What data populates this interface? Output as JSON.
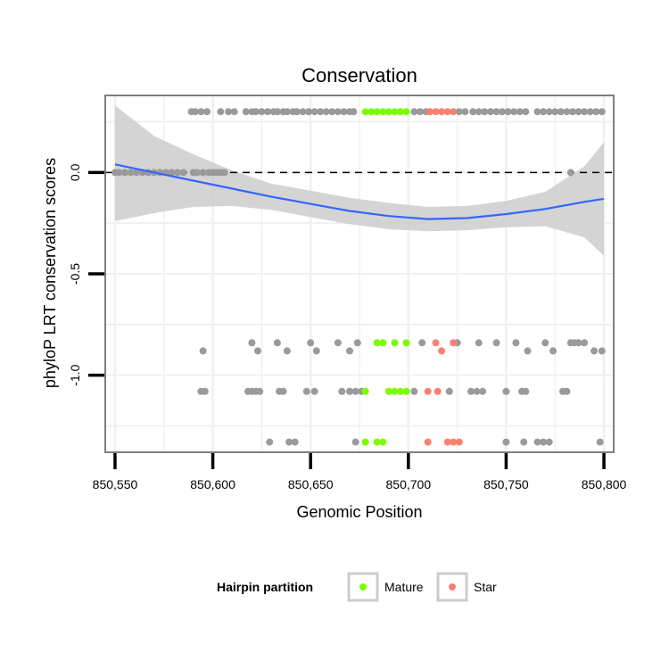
{
  "chart_data": {
    "type": "scatter",
    "title": "Conservation",
    "xlabel": "Genomic Position",
    "ylabel": "phyloP LRT conservation scores",
    "xlim": [
      850545,
      850805
    ],
    "ylim": [
      -1.38,
      0.38
    ],
    "x_ticks": [
      850550,
      850600,
      850650,
      850700,
      850750,
      850800
    ],
    "x_tick_labels": [
      "850,550",
      "850,600",
      "850,650",
      "850,700",
      "850,750",
      "850,800"
    ],
    "y_ticks": [
      0.0,
      -0.5,
      -1.0
    ],
    "y_tick_labels": [
      "0.0",
      "-0.5",
      "-1.0"
    ],
    "reference_line": {
      "y": 0.0,
      "style": "dashed"
    },
    "colors": {
      "other": "#9a9a9a",
      "Mature": "#7cfc00",
      "Star": "#fa8072",
      "smooth": "#3366ff",
      "ribbon": "#cccccc",
      "panel_border": "#7f7f7f",
      "grid": "#f0f0f0"
    },
    "smooth": {
      "x": [
        850550,
        850570,
        850590,
        850610,
        850630,
        850650,
        850670,
        850690,
        850710,
        850730,
        850750,
        850770,
        850790,
        850800
      ],
      "y": [
        0.04,
        0.0,
        -0.04,
        -0.08,
        -0.12,
        -0.155,
        -0.19,
        -0.215,
        -0.23,
        -0.225,
        -0.205,
        -0.18,
        -0.145,
        -0.13
      ],
      "lower": [
        -0.24,
        -0.2,
        -0.17,
        -0.165,
        -0.185,
        -0.22,
        -0.255,
        -0.28,
        -0.29,
        -0.285,
        -0.27,
        -0.265,
        -0.32,
        -0.41
      ],
      "upper": [
        0.33,
        0.18,
        0.09,
        0.01,
        -0.055,
        -0.09,
        -0.125,
        -0.15,
        -0.17,
        -0.165,
        -0.14,
        -0.095,
        0.03,
        0.15
      ]
    },
    "series": [
      {
        "name": "other",
        "points": [
          [
            850550,
            0.0
          ],
          [
            850552,
            0.0
          ],
          [
            850555,
            0.0
          ],
          [
            850558,
            0.0
          ],
          [
            850561,
            0.0
          ],
          [
            850564,
            0.0
          ],
          [
            850567,
            0.0
          ],
          [
            850570,
            0.0
          ],
          [
            850573,
            0.0
          ],
          [
            850576,
            0.0
          ],
          [
            850579,
            0.0
          ],
          [
            850582,
            0.0
          ],
          [
            850585,
            0.0
          ],
          [
            850590,
            0.0
          ],
          [
            850592,
            0.0
          ],
          [
            850595,
            0.0
          ],
          [
            850598,
            0.0
          ],
          [
            850600,
            0.0
          ],
          [
            850602,
            0.0
          ],
          [
            850604,
            0.0
          ],
          [
            850606,
            0.0
          ],
          [
            850783,
            0.0
          ],
          [
            850589,
            0.3
          ],
          [
            850591,
            0.3
          ],
          [
            850594,
            0.3
          ],
          [
            850597,
            0.3
          ],
          [
            850604,
            0.3
          ],
          [
            850608,
            0.3
          ],
          [
            850611,
            0.3
          ],
          [
            850617,
            0.3
          ],
          [
            850620,
            0.3
          ],
          [
            850622,
            0.3
          ],
          [
            850625,
            0.3
          ],
          [
            850628,
            0.3
          ],
          [
            850631,
            0.3
          ],
          [
            850633,
            0.3
          ],
          [
            850636,
            0.3
          ],
          [
            850638,
            0.3
          ],
          [
            850641,
            0.3
          ],
          [
            850643,
            0.3
          ],
          [
            850646,
            0.3
          ],
          [
            850649,
            0.3
          ],
          [
            850652,
            0.3
          ],
          [
            850655,
            0.3
          ],
          [
            850658,
            0.3
          ],
          [
            850661,
            0.3
          ],
          [
            850664,
            0.3
          ],
          [
            850667,
            0.3
          ],
          [
            850670,
            0.3
          ],
          [
            850672,
            0.3
          ],
          [
            850703,
            0.3
          ],
          [
            850706,
            0.3
          ],
          [
            850709,
            0.3
          ],
          [
            850726,
            0.3
          ],
          [
            850729,
            0.3
          ],
          [
            850733,
            0.3
          ],
          [
            850736,
            0.3
          ],
          [
            850739,
            0.3
          ],
          [
            850742,
            0.3
          ],
          [
            850745,
            0.3
          ],
          [
            850748,
            0.3
          ],
          [
            850751,
            0.3
          ],
          [
            850754,
            0.3
          ],
          [
            850757,
            0.3
          ],
          [
            850760,
            0.3
          ],
          [
            850766,
            0.3
          ],
          [
            850769,
            0.3
          ],
          [
            850772,
            0.3
          ],
          [
            850775,
            0.3
          ],
          [
            850778,
            0.3
          ],
          [
            850781,
            0.3
          ],
          [
            850784,
            0.3
          ],
          [
            850787,
            0.3
          ],
          [
            850790,
            0.3
          ],
          [
            850793,
            0.3
          ],
          [
            850796,
            0.3
          ],
          [
            850799,
            0.3
          ],
          [
            850595,
            -0.88
          ],
          [
            850620,
            -0.84
          ],
          [
            850623,
            -0.88
          ],
          [
            850633,
            -0.84
          ],
          [
            850638,
            -0.88
          ],
          [
            850650,
            -0.84
          ],
          [
            850653,
            -0.88
          ],
          [
            850664,
            -0.84
          ],
          [
            850670,
            -0.88
          ],
          [
            850674,
            -0.84
          ],
          [
            850707,
            -0.84
          ],
          [
            850725,
            -0.84
          ],
          [
            850736,
            -0.84
          ],
          [
            850745,
            -0.84
          ],
          [
            850755,
            -0.84
          ],
          [
            850761,
            -0.88
          ],
          [
            850770,
            -0.84
          ],
          [
            850774,
            -0.88
          ],
          [
            850783,
            -0.84
          ],
          [
            850785,
            -0.84
          ],
          [
            850787,
            -0.84
          ],
          [
            850790,
            -0.84
          ],
          [
            850795,
            -0.88
          ],
          [
            850799,
            -0.88
          ],
          [
            850594,
            -1.08
          ],
          [
            850596,
            -1.08
          ],
          [
            850618,
            -1.08
          ],
          [
            850620,
            -1.08
          ],
          [
            850622,
            -1.08
          ],
          [
            850624,
            -1.08
          ],
          [
            850634,
            -1.08
          ],
          [
            850636,
            -1.08
          ],
          [
            850648,
            -1.08
          ],
          [
            850652,
            -1.08
          ],
          [
            850666,
            -1.08
          ],
          [
            850670,
            -1.08
          ],
          [
            850673,
            -1.08
          ],
          [
            850676,
            -1.08
          ],
          [
            850703,
            -1.08
          ],
          [
            850721,
            -1.08
          ],
          [
            850732,
            -1.08
          ],
          [
            850735,
            -1.08
          ],
          [
            850738,
            -1.08
          ],
          [
            850750,
            -1.08
          ],
          [
            850758,
            -1.08
          ],
          [
            850760,
            -1.08
          ],
          [
            850779,
            -1.08
          ],
          [
            850781,
            -1.08
          ],
          [
            850629,
            -1.33
          ],
          [
            850639,
            -1.33
          ],
          [
            850642,
            -1.33
          ],
          [
            850673,
            -1.33
          ],
          [
            850750,
            -1.33
          ],
          [
            850759,
            -1.33
          ],
          [
            850766,
            -1.33
          ],
          [
            850769,
            -1.33
          ],
          [
            850772,
            -1.33
          ],
          [
            850798,
            -1.33
          ]
        ]
      },
      {
        "name": "Mature",
        "points": [
          [
            850678,
            0.3
          ],
          [
            850681,
            0.3
          ],
          [
            850684,
            0.3
          ],
          [
            850687,
            0.3
          ],
          [
            850690,
            0.3
          ],
          [
            850693,
            0.3
          ],
          [
            850696,
            0.3
          ],
          [
            850699,
            0.3
          ],
          [
            850684,
            -0.84
          ],
          [
            850687,
            -0.84
          ],
          [
            850693,
            -0.84
          ],
          [
            850699,
            -0.84
          ],
          [
            850678,
            -1.08
          ],
          [
            850690,
            -1.08
          ],
          [
            850693,
            -1.08
          ],
          [
            850696,
            -1.08
          ],
          [
            850699,
            -1.08
          ],
          [
            850678,
            -1.33
          ],
          [
            850684,
            -1.33
          ],
          [
            850687,
            -1.33
          ]
        ]
      },
      {
        "name": "Star",
        "points": [
          [
            850711,
            0.3
          ],
          [
            850714,
            0.3
          ],
          [
            850717,
            0.3
          ],
          [
            850720,
            0.3
          ],
          [
            850723,
            0.3
          ],
          [
            850714,
            -0.84
          ],
          [
            850723,
            -0.84
          ],
          [
            850717,
            -0.88
          ],
          [
            850710,
            -1.08
          ],
          [
            850715,
            -1.08
          ],
          [
            850710,
            -1.33
          ],
          [
            850720,
            -1.33
          ],
          [
            850723,
            -1.33
          ],
          [
            850726,
            -1.33
          ]
        ]
      }
    ],
    "legend": {
      "title": "Hairpin partition",
      "entries": [
        "Mature",
        "Star"
      ],
      "placement": "bottom"
    }
  }
}
